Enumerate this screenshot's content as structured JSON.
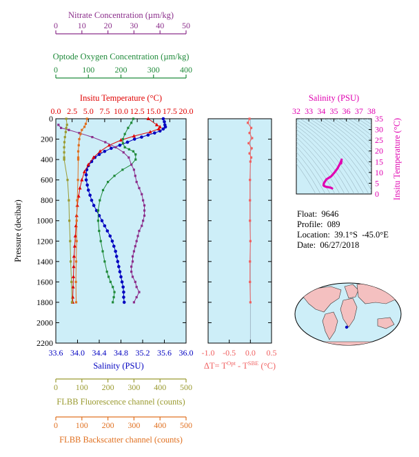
{
  "colors": {
    "nitrate": "#8b2e8b",
    "oxygen": "#1f8a3a",
    "temperature": "#e00000",
    "salinity": "#0000c0",
    "fluorescence": "#9a9a30",
    "backscatter": "#e07020",
    "delta": "#f06060",
    "ts_axis": "#e000b0",
    "plot_bg": "#cdeef8"
  },
  "info": {
    "float_label": "Float:",
    "float_value": "9646",
    "profile_label": "Profile:",
    "profile_value": "089",
    "location_label": "Location:",
    "location_value": "39.1°S  -45.0°E",
    "date_label": "Date:",
    "date_value": "06/27/2018"
  },
  "map": {
    "marker": "float-position"
  },
  "chart_data": [
    {
      "id": "profile",
      "type": "line",
      "ylabel": "Pressure (decibar)",
      "ylim": [
        2200,
        0
      ],
      "yticks": [
        0,
        200,
        400,
        600,
        800,
        1000,
        1200,
        1400,
        1600,
        1800,
        2000,
        2200
      ],
      "axes": {
        "salinity": {
          "label": "Salinity (PSU)",
          "range": [
            33.6,
            36.0
          ],
          "ticks": [
            "33.6",
            "34.0",
            "34.4",
            "34.8",
            "35.2",
            "35.6",
            "36.0"
          ]
        },
        "temperature": {
          "label": "Insitu Temperature (°C)",
          "range": [
            0,
            20
          ],
          "ticks": [
            "0.0",
            "2.5",
            "5.0",
            "7.5",
            "10.0",
            "12.5",
            "15.0",
            "17.5",
            "20.0"
          ]
        },
        "oxygen": {
          "label": "Optode Oxygen Concentration (µm/kg)",
          "range": [
            0,
            400
          ],
          "ticks": [
            "0",
            "100",
            "200",
            "300",
            "400"
          ]
        },
        "nitrate": {
          "label": "Nitrate Concentration (µm/kg)",
          "range": [
            0,
            50
          ],
          "ticks": [
            "0",
            "10",
            "20",
            "30",
            "40",
            "50"
          ]
        },
        "fluorescence": {
          "label": "FLBB Fluorescence channel (counts)",
          "range": [
            0,
            500
          ],
          "ticks": [
            "0",
            "100",
            "200",
            "300",
            "400",
            "500"
          ]
        },
        "backscatter": {
          "label": "FLBB Backscatter channel (counts)",
          "range": [
            0,
            500
          ],
          "ticks": [
            "0",
            "100",
            "200",
            "300",
            "400",
            "500"
          ]
        }
      },
      "series": [
        {
          "axis": "salinity",
          "marker": "circle",
          "points": [
            [
              35.58,
              0
            ],
            [
              35.6,
              30
            ],
            [
              35.61,
              60
            ],
            [
              35.62,
              80
            ],
            [
              35.58,
              100
            ],
            [
              35.52,
              120
            ],
            [
              35.42,
              140
            ],
            [
              35.3,
              160
            ],
            [
              35.18,
              180
            ],
            [
              35.05,
              200
            ],
            [
              34.92,
              230
            ],
            [
              34.78,
              260
            ],
            [
              34.62,
              290
            ],
            [
              34.5,
              320
            ],
            [
              34.4,
              350
            ],
            [
              34.32,
              380
            ],
            [
              34.26,
              420
            ],
            [
              34.2,
              460
            ],
            [
              34.17,
              500
            ],
            [
              34.16,
              550
            ],
            [
              34.16,
              600
            ],
            [
              34.18,
              650
            ],
            [
              34.2,
              700
            ],
            [
              34.23,
              750
            ],
            [
              34.26,
              800
            ],
            [
              34.3,
              850
            ],
            [
              34.35,
              900
            ],
            [
              34.4,
              950
            ],
            [
              34.45,
              1000
            ],
            [
              34.5,
              1050
            ],
            [
              34.55,
              1100
            ],
            [
              34.6,
              1150
            ],
            [
              34.64,
              1200
            ],
            [
              34.67,
              1250
            ],
            [
              34.7,
              1300
            ],
            [
              34.72,
              1350
            ],
            [
              34.74,
              1400
            ],
            [
              34.76,
              1450
            ],
            [
              34.78,
              1500
            ],
            [
              34.8,
              1550
            ],
            [
              34.82,
              1600
            ],
            [
              34.84,
              1650
            ],
            [
              34.85,
              1700
            ],
            [
              34.85,
              1750
            ],
            [
              34.86,
              1800
            ]
          ]
        },
        {
          "axis": "temperature",
          "marker": "triangle",
          "points": [
            [
              14.2,
              0
            ],
            [
              15.5,
              60
            ],
            [
              16.0,
              80
            ],
            [
              15.8,
              100
            ],
            [
              14.5,
              130
            ],
            [
              12.0,
              170
            ],
            [
              10.0,
              210
            ],
            [
              8.2,
              260
            ],
            [
              6.8,
              320
            ],
            [
              5.8,
              380
            ],
            [
              5.0,
              450
            ],
            [
              4.4,
              520
            ],
            [
              4.0,
              600
            ],
            [
              3.7,
              680
            ],
            [
              3.5,
              760
            ],
            [
              3.3,
              850
            ],
            [
              3.2,
              950
            ],
            [
              3.1,
              1050
            ],
            [
              3.0,
              1150
            ],
            [
              2.9,
              1250
            ],
            [
              2.8,
              1350
            ],
            [
              2.75,
              1450
            ],
            [
              2.7,
              1550
            ],
            [
              2.65,
              1650
            ],
            [
              2.6,
              1750
            ],
            [
              2.6,
              1800
            ]
          ]
        },
        {
          "axis": "oxygen",
          "marker": "square",
          "points": [
            [
              238,
              0
            ],
            [
              232,
              40
            ],
            [
              222,
              90
            ],
            [
              212,
              150
            ],
            [
              206,
              200
            ],
            [
              206,
              240
            ],
            [
              212,
              280
            ],
            [
              225,
              300
            ],
            [
              238,
              320
            ],
            [
              245,
              350
            ],
            [
              245,
              400
            ],
            [
              232,
              450
            ],
            [
              205,
              500
            ],
            [
              180,
              560
            ],
            [
              160,
              620
            ],
            [
              145,
              700
            ],
            [
              135,
              800
            ],
            [
              130,
              900
            ],
            [
              130,
              1000
            ],
            [
              133,
              1100
            ],
            [
              138,
              1200
            ],
            [
              144,
              1300
            ],
            [
              150,
              1400
            ],
            [
              157,
              1500
            ],
            [
              162,
              1550
            ],
            [
              168,
              1600
            ],
            [
              175,
              1650
            ],
            [
              180,
              1700
            ],
            [
              178,
              1750
            ],
            [
              175,
              1800
            ]
          ]
        },
        {
          "axis": "nitrate",
          "marker": "square",
          "points": [
            [
              1,
              60
            ],
            [
              2,
              90
            ],
            [
              5,
              110
            ],
            [
              9,
              140
            ],
            [
              14,
              180
            ],
            [
              19,
              230
            ],
            [
              23,
              280
            ],
            [
              26,
              330
            ],
            [
              28,
              380
            ],
            [
              29,
              450
            ],
            [
              30,
              500
            ],
            [
              30.5,
              560
            ],
            [
              31,
              620
            ],
            [
              32,
              680
            ],
            [
              33,
              740
            ],
            [
              33.5,
              800
            ],
            [
              34,
              850
            ],
            [
              34,
              900
            ],
            [
              34,
              950
            ],
            [
              33.5,
              1000
            ],
            [
              33,
              1050
            ],
            [
              32,
              1100
            ],
            [
              31.5,
              1150
            ],
            [
              31,
              1200
            ],
            [
              30.5,
              1250
            ],
            [
              30,
              1300
            ],
            [
              29.5,
              1350
            ],
            [
              29.5,
              1400
            ],
            [
              29,
              1450
            ],
            [
              29,
              1500
            ],
            [
              29.5,
              1550
            ],
            [
              30.5,
              1600
            ],
            [
              31,
              1650
            ],
            [
              32,
              1700
            ],
            [
              31,
              1750
            ],
            [
              30,
              1800
            ]
          ]
        },
        {
          "axis": "fluorescence",
          "marker": "square",
          "points": [
            [
              40,
              0
            ],
            [
              43,
              60
            ],
            [
              40,
              90
            ],
            [
              38,
              130
            ],
            [
              35,
              180
            ],
            [
              33,
              230
            ],
            [
              32,
              280
            ],
            [
              32,
              330
            ],
            [
              32,
              380
            ],
            [
              32,
              400
            ],
            [
              45,
              600
            ],
            [
              50,
              800
            ],
            [
              52,
              1000
            ],
            [
              55,
              1200
            ],
            [
              57,
              1400
            ],
            [
              60,
              1600
            ],
            [
              62,
              1800
            ]
          ]
        },
        {
          "axis": "backscatter",
          "marker": "square",
          "points": [
            [
              120,
              0
            ],
            [
              115,
              50
            ],
            [
              110,
              80
            ],
            [
              100,
              110
            ],
            [
              95,
              150
            ],
            [
              90,
              200
            ],
            [
              88,
              260
            ],
            [
              86,
              320
            ],
            [
              86,
              380
            ],
            [
              86,
              400
            ],
            [
              85,
              600
            ],
            [
              82,
              800
            ],
            [
              80,
              1000
            ],
            [
              80,
              1200
            ],
            [
              78,
              1400
            ],
            [
              77,
              1600
            ],
            [
              78,
              1800
            ]
          ]
        }
      ]
    },
    {
      "id": "delta-t",
      "type": "scatter",
      "xlabel": "ΔT= T",
      "xlabel_sup1": "Opt",
      "xlabel_mid": " - T",
      "xlabel_sup2": "SBE",
      "xlabel_end": " (°C)",
      "xlim": [
        -1.0,
        0.5
      ],
      "ylim": [
        2200,
        0
      ],
      "xticks": [
        "-1.0",
        "-0.5",
        "0.0",
        "0.5"
      ],
      "points": [
        [
          -0.02,
          0
        ],
        [
          -0.06,
          40
        ],
        [
          0.02,
          90
        ],
        [
          -0.02,
          140
        ],
        [
          0.04,
          190
        ],
        [
          -0.04,
          240
        ],
        [
          0.03,
          290
        ],
        [
          -0.02,
          340
        ],
        [
          0.02,
          380
        ],
        [
          0.0,
          420
        ],
        [
          -0.01,
          600
        ],
        [
          -0.01,
          800
        ],
        [
          -0.01,
          1000
        ],
        [
          0.0,
          1200
        ],
        [
          -0.01,
          1400
        ],
        [
          -0.01,
          1600
        ],
        [
          0.0,
          1800
        ]
      ]
    },
    {
      "id": "ts-diagram",
      "type": "line",
      "xlabel": "Salinity (PSU)",
      "ylabel": "Insitu Temperature (°C)",
      "xlim": [
        32,
        38
      ],
      "ylim": [
        0,
        35
      ],
      "xticks": [
        "32",
        "33",
        "34",
        "35",
        "36",
        "37",
        "38"
      ],
      "yticks": [
        "0",
        "5",
        "10",
        "15",
        "20",
        "25",
        "30",
        "35"
      ],
      "points": [
        [
          34.86,
          2.6
        ],
        [
          34.8,
          2.8
        ],
        [
          34.7,
          3.0
        ],
        [
          34.55,
          3.2
        ],
        [
          34.4,
          3.3
        ],
        [
          34.25,
          3.6
        ],
        [
          34.17,
          4.0
        ],
        [
          34.2,
          5.0
        ],
        [
          34.4,
          6.8
        ],
        [
          34.78,
          8.2
        ],
        [
          35.05,
          10.0
        ],
        [
          35.3,
          12.0
        ],
        [
          35.52,
          14.5
        ],
        [
          35.62,
          16.0
        ],
        [
          35.6,
          15.5
        ],
        [
          35.58,
          14.2
        ]
      ]
    }
  ]
}
